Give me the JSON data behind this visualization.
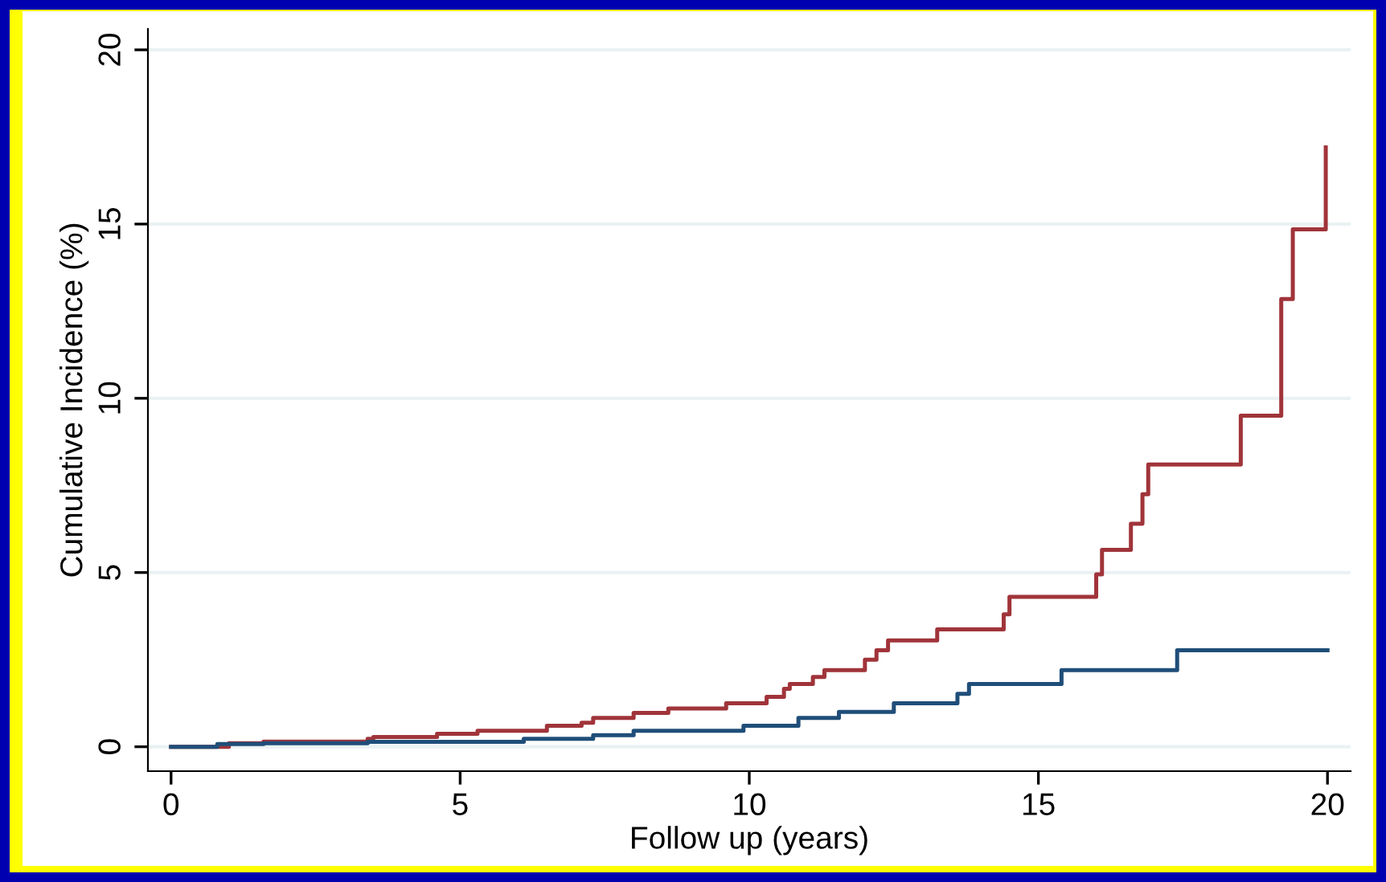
{
  "chart_data": {
    "type": "step",
    "xlabel": "Follow up (years)",
    "ylabel": "Cumulative Incidence (%)",
    "xlim": [
      -0.4,
      20.4
    ],
    "ylim": [
      -0.7,
      20.6
    ],
    "xticks": [
      0,
      5,
      10,
      15,
      20
    ],
    "yticks": [
      0,
      5,
      10,
      15,
      20
    ],
    "grid": "y",
    "series": [
      {
        "color": "#a0343a",
        "x": [
          0,
          1.0,
          1.6,
          3.4,
          3.5,
          4.6,
          5.3,
          6.5,
          7.1,
          7.3,
          8.0,
          8.6,
          9.6,
          10.3,
          10.6,
          10.7,
          11.1,
          11.3,
          12.0,
          12.2,
          12.4,
          13.25,
          14.4,
          14.5,
          16.0,
          16.1,
          16.6,
          16.8,
          16.9,
          18.5,
          19.2,
          19.4,
          19.75,
          19.97
        ],
        "values": [
          0,
          0.1,
          0.15,
          0.23,
          0.28,
          0.37,
          0.46,
          0.6,
          0.69,
          0.83,
          0.97,
          1.1,
          1.25,
          1.43,
          1.66,
          1.8,
          2.0,
          2.2,
          2.5,
          2.77,
          3.05,
          3.37,
          3.8,
          4.3,
          4.95,
          5.65,
          6.4,
          7.25,
          8.1,
          9.5,
          12.85,
          14.85,
          14.85,
          17.2
        ]
      },
      {
        "color": "#1f4e79",
        "x": [
          0,
          0.8,
          1.6,
          3.4,
          6.1,
          7.3,
          8.0,
          9.9,
          10.85,
          11.55,
          12.5,
          13.6,
          13.8,
          15.4,
          17.4,
          20.0
        ],
        "values": [
          0,
          0.08,
          0.1,
          0.14,
          0.23,
          0.33,
          0.46,
          0.6,
          0.83,
          1.0,
          1.25,
          1.52,
          1.8,
          2.2,
          2.77,
          2.77
        ]
      }
    ]
  }
}
